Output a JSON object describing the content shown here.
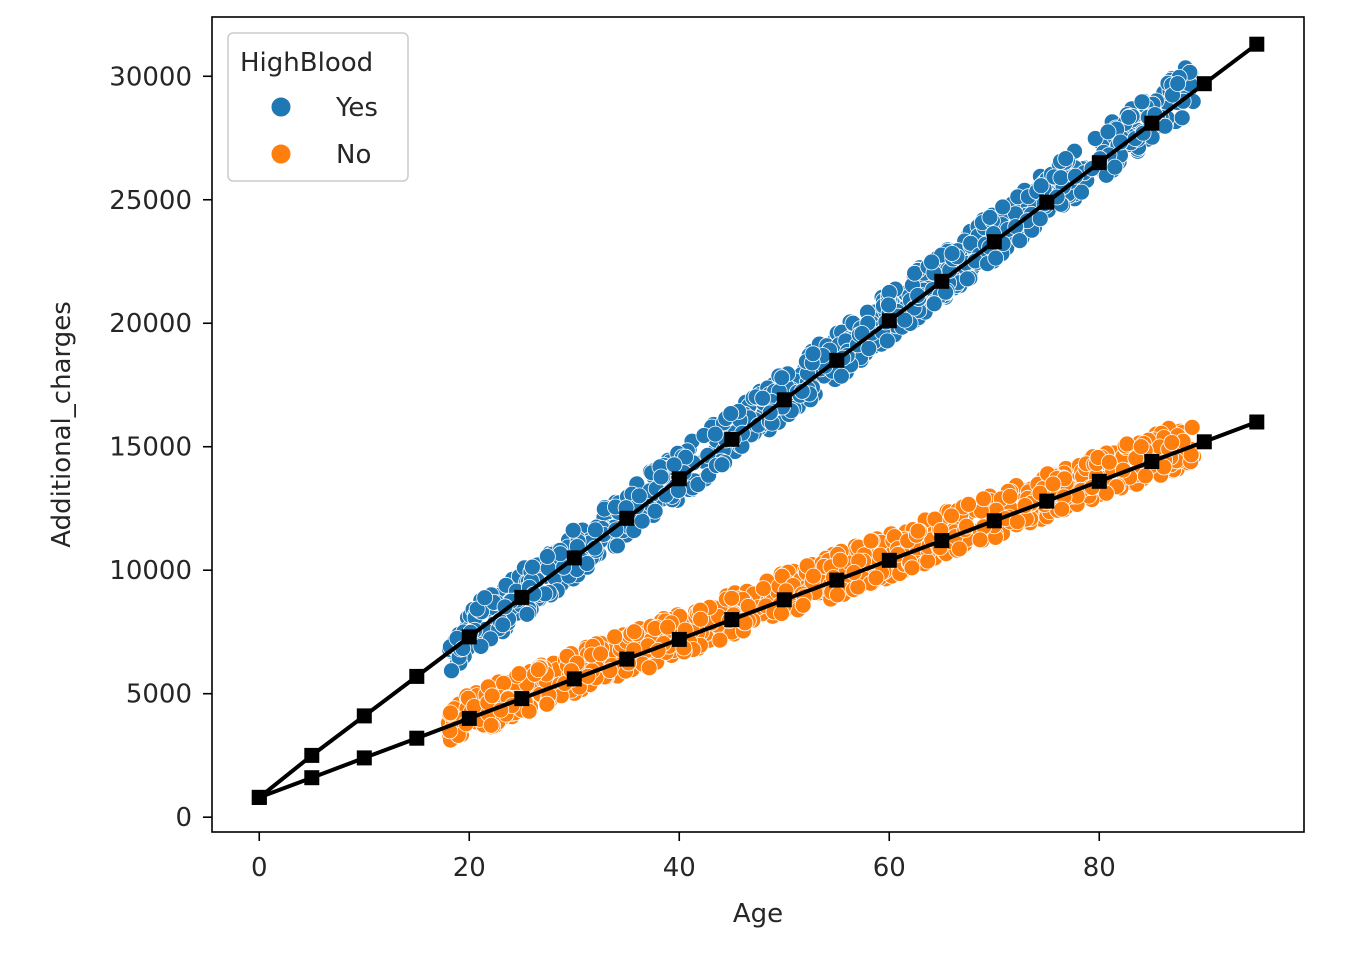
{
  "chart_data": {
    "type": "scatter",
    "title": "",
    "xlabel": "Age",
    "ylabel": "Additional_charges",
    "xlim": [
      -4.5,
      99.5
    ],
    "ylim": [
      -600,
      32400
    ],
    "xticks": [
      0,
      20,
      40,
      60,
      80
    ],
    "xtick_labels": [
      "0",
      "20",
      "40",
      "60",
      "80"
    ],
    "yticks": [
      0,
      5000,
      10000,
      15000,
      20000,
      25000,
      30000
    ],
    "ytick_labels": [
      "0",
      "5000",
      "10000",
      "15000",
      "20000",
      "25000",
      "30000"
    ],
    "grid": false,
    "legend": {
      "title": "HighBlood",
      "placement": "upper-left",
      "entries": [
        {
          "label": "Yes",
          "color": "#1f77b4"
        },
        {
          "label": "No",
          "color": "#ff7f0e"
        }
      ]
    },
    "scatter_series": [
      {
        "name": "Yes",
        "color": "#1f77b4",
        "x_range": [
          18,
          89
        ],
        "trend": {
          "slope": 322,
          "intercept": 1000
        },
        "spread": 1000
      },
      {
        "name": "No",
        "color": "#ff7f0e",
        "x_range": [
          18,
          89
        ],
        "trend": {
          "slope": 160,
          "intercept": 1000
        },
        "spread": 900
      }
    ],
    "line_series": [
      {
        "name": "",
        "color": "#000000",
        "marker": "square",
        "x": [
          0,
          5,
          10,
          15,
          20,
          25,
          30,
          35,
          40,
          45,
          50,
          55,
          60,
          65,
          70,
          75,
          80,
          85,
          90,
          95
        ],
        "y": [
          800,
          2500,
          4100,
          5700,
          7300,
          8900,
          10500,
          12100,
          13700,
          15300,
          16900,
          18500,
          20100,
          21700,
          23300,
          24900,
          26500,
          28100,
          29700,
          31300
        ]
      },
      {
        "name": "",
        "color": "#000000",
        "marker": "square",
        "x": [
          0,
          5,
          10,
          15,
          20,
          25,
          30,
          35,
          40,
          45,
          50,
          55,
          60,
          65,
          70,
          75,
          80,
          85,
          90,
          95
        ],
        "y": [
          800,
          1600,
          2400,
          3200,
          4000,
          4800,
          5600,
          6400,
          7200,
          8000,
          8800,
          9600,
          10400,
          11200,
          12000,
          12800,
          13600,
          14400,
          15200,
          16000
        ]
      }
    ]
  }
}
